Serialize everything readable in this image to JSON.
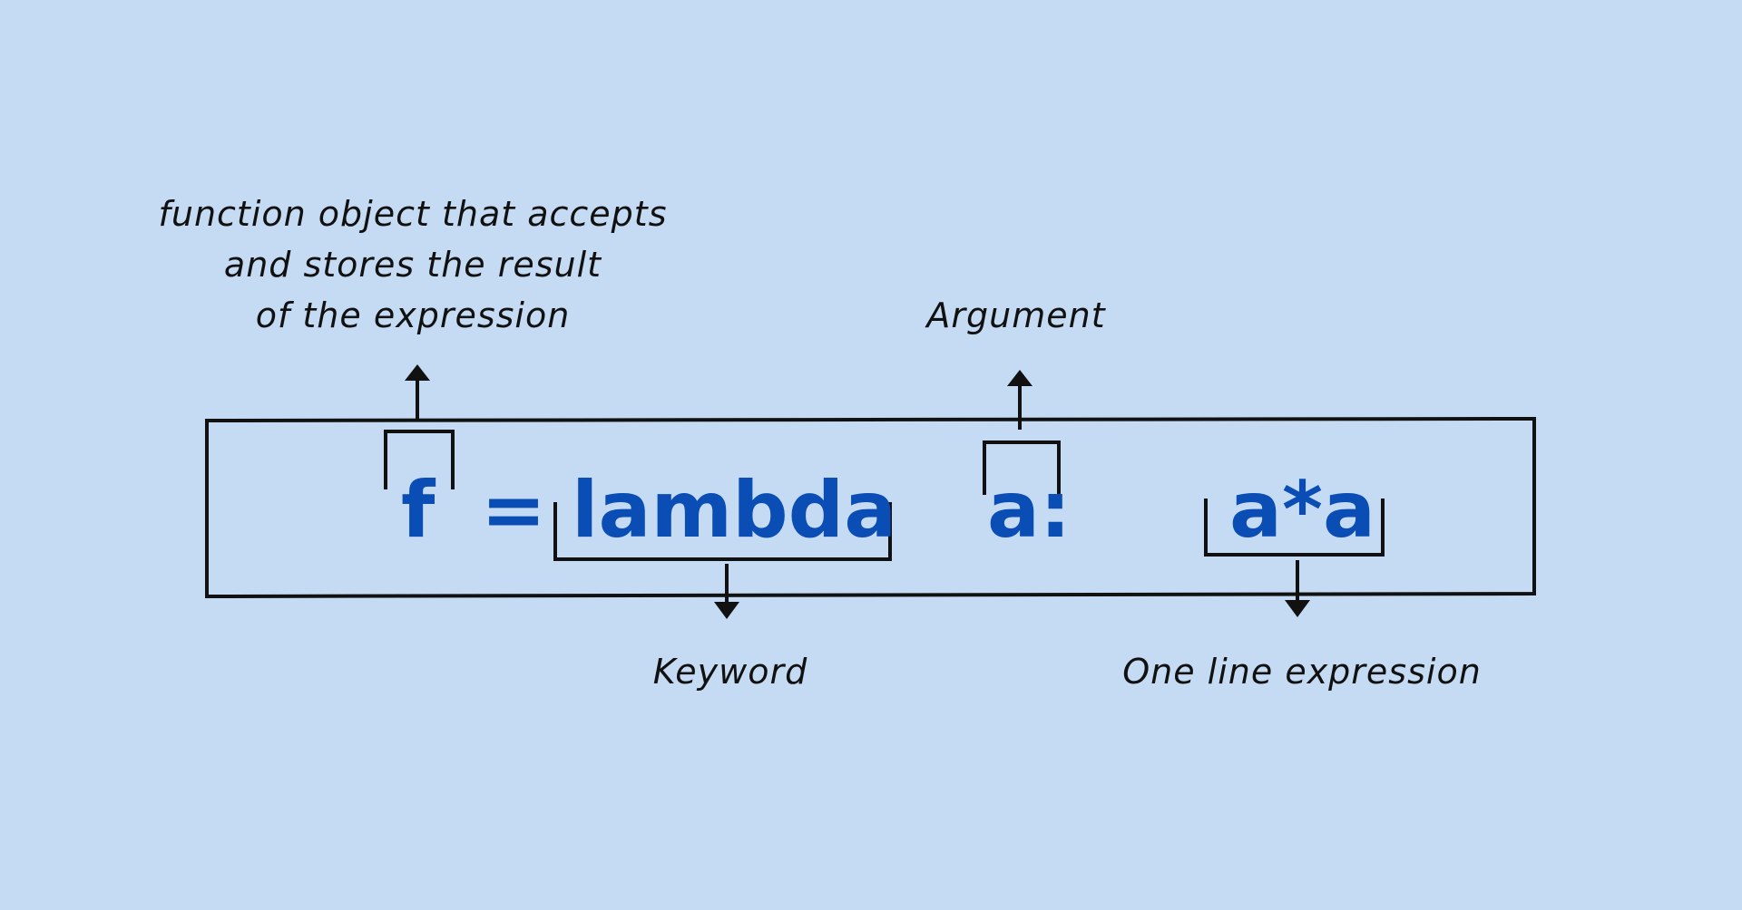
{
  "code": {
    "f": "f",
    "equals": "=",
    "keyword": "lambda",
    "argument": "a:",
    "expression": "a*a"
  },
  "labels": {
    "function_object": [
      "function object that accepts",
      "and stores the result",
      "of the expression"
    ],
    "argument": "Argument",
    "keyword": "Keyword",
    "expression": "One line expression"
  },
  "colors": {
    "background": "#c5dbf4",
    "code_text": "#0a4db5",
    "annotation_text": "#111111",
    "lines": "#111111"
  }
}
